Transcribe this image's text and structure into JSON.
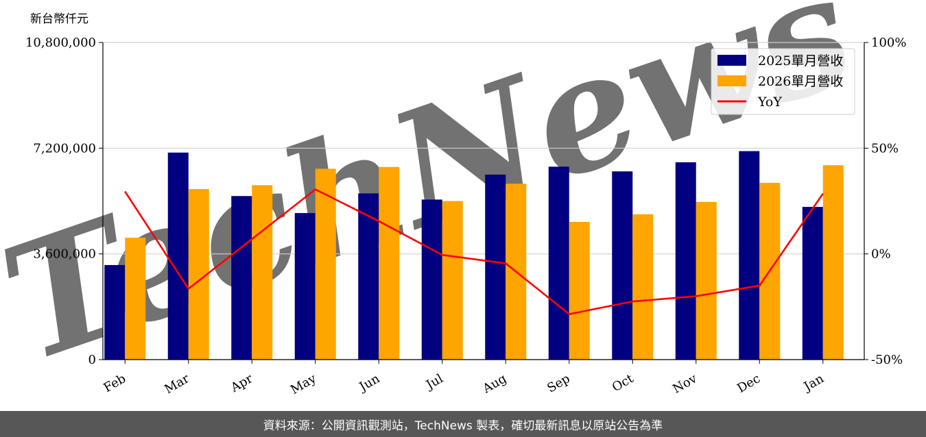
{
  "chart_data": {
    "type": "bar",
    "y_unit_label": "新台幣仟元",
    "categories": [
      "Feb",
      "Mar",
      "Apr",
      "May",
      "Jun",
      "Jul",
      "Aug",
      "Sep",
      "Oct",
      "Nov",
      "Dec",
      "Jan"
    ],
    "series": [
      {
        "name": "2025單月營收",
        "kind": "bar",
        "axis": "left",
        "color": "#000080",
        "values": [
          3220000,
          7050000,
          5570000,
          4990000,
          5660000,
          5450000,
          6300000,
          6570000,
          6410000,
          6720000,
          7100000,
          5200000
        ]
      },
      {
        "name": "2026單月營收",
        "kind": "bar",
        "axis": "left",
        "color": "#FFA500",
        "values": [
          4150000,
          5810000,
          5940000,
          6500000,
          6560000,
          5400000,
          5990000,
          4690000,
          4950000,
          5370000,
          6020000,
          6620000
        ]
      },
      {
        "name": "YoY",
        "kind": "line",
        "axis": "right",
        "color": "#FF0000",
        "values": [
          29.5,
          -16.5,
          7.0,
          30.5,
          15.5,
          -0.5,
          -4.5,
          -28.5,
          -22.5,
          -20.0,
          -15.0,
          28.5
        ]
      }
    ],
    "y_left": {
      "min": 0,
      "max": 10800000,
      "ticks": [
        0,
        3600000,
        7200000,
        10800000
      ],
      "tick_labels": [
        "0",
        "3,600,000",
        "7,200,000",
        "10,800,000"
      ]
    },
    "y_right": {
      "min": -50,
      "max": 100,
      "ticks": [
        -50,
        0,
        50,
        100
      ],
      "tick_labels": [
        "-50%",
        "0%",
        "50%",
        "100%"
      ]
    },
    "grid": "horizontal",
    "legend_position": "top-right",
    "watermark": "TechNews"
  },
  "footer": {
    "source_text": "資料來源：公開資訊觀測站，TechNews 製表，確切最新訊息以原站公告為準"
  }
}
